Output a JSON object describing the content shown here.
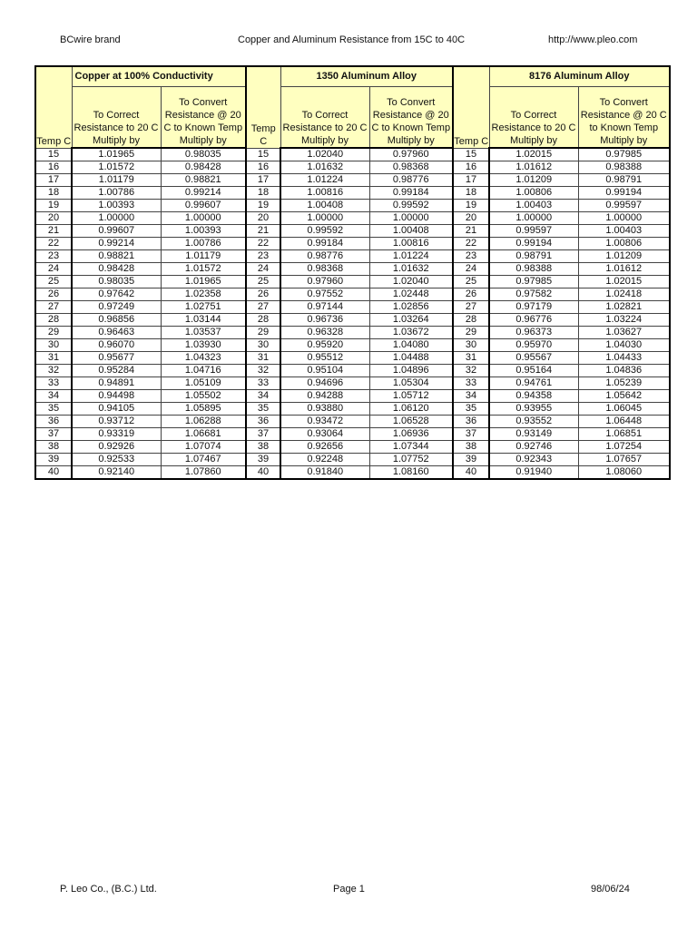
{
  "header": {
    "left": "BCwire brand",
    "center": "Copper and Aluminum Resistance from 15C to 40C",
    "right": "http://www.pleo.com"
  },
  "footer": {
    "left": "P. Leo Co., (B.C.) Ltd.",
    "center": "Page 1",
    "right": "98/06/24"
  },
  "table": {
    "groups": [
      "Copper at 100% Conductivity",
      "1350 Aluminum Alloy",
      "8176 Aluminum Alloy"
    ],
    "temp_label": "Temp C",
    "col_correct": "To Correct Resistance to 20 C Multiply by",
    "col_convert": "To Convert Resistance @ 20 C to Known Temp Multiply by",
    "header_color": "#ffffc0",
    "rows": [
      [
        "15",
        "1.01965",
        "0.98035",
        "15",
        "1.02040",
        "0.97960",
        "15",
        "1.02015",
        "0.97985"
      ],
      [
        "16",
        "1.01572",
        "0.98428",
        "16",
        "1.01632",
        "0.98368",
        "16",
        "1.01612",
        "0.98388"
      ],
      [
        "17",
        "1.01179",
        "0.98821",
        "17",
        "1.01224",
        "0.98776",
        "17",
        "1.01209",
        "0.98791"
      ],
      [
        "18",
        "1.00786",
        "0.99214",
        "18",
        "1.00816",
        "0.99184",
        "18",
        "1.00806",
        "0.99194"
      ],
      [
        "19",
        "1.00393",
        "0.99607",
        "19",
        "1.00408",
        "0.99592",
        "19",
        "1.00403",
        "0.99597"
      ],
      [
        "20",
        "1.00000",
        "1.00000",
        "20",
        "1.00000",
        "1.00000",
        "20",
        "1.00000",
        "1.00000"
      ],
      [
        "21",
        "0.99607",
        "1.00393",
        "21",
        "0.99592",
        "1.00408",
        "21",
        "0.99597",
        "1.00403"
      ],
      [
        "22",
        "0.99214",
        "1.00786",
        "22",
        "0.99184",
        "1.00816",
        "22",
        "0.99194",
        "1.00806"
      ],
      [
        "23",
        "0.98821",
        "1.01179",
        "23",
        "0.98776",
        "1.01224",
        "23",
        "0.98791",
        "1.01209"
      ],
      [
        "24",
        "0.98428",
        "1.01572",
        "24",
        "0.98368",
        "1.01632",
        "24",
        "0.98388",
        "1.01612"
      ],
      [
        "25",
        "0.98035",
        "1.01965",
        "25",
        "0.97960",
        "1.02040",
        "25",
        "0.97985",
        "1.02015"
      ],
      [
        "26",
        "0.97642",
        "1.02358",
        "26",
        "0.97552",
        "1.02448",
        "26",
        "0.97582",
        "1.02418"
      ],
      [
        "27",
        "0.97249",
        "1.02751",
        "27",
        "0.97144",
        "1.02856",
        "27",
        "0.97179",
        "1.02821"
      ],
      [
        "28",
        "0.96856",
        "1.03144",
        "28",
        "0.96736",
        "1.03264",
        "28",
        "0.96776",
        "1.03224"
      ],
      [
        "29",
        "0.96463",
        "1.03537",
        "29",
        "0.96328",
        "1.03672",
        "29",
        "0.96373",
        "1.03627"
      ],
      [
        "30",
        "0.96070",
        "1.03930",
        "30",
        "0.95920",
        "1.04080",
        "30",
        "0.95970",
        "1.04030"
      ],
      [
        "31",
        "0.95677",
        "1.04323",
        "31",
        "0.95512",
        "1.04488",
        "31",
        "0.95567",
        "1.04433"
      ],
      [
        "32",
        "0.95284",
        "1.04716",
        "32",
        "0.95104",
        "1.04896",
        "32",
        "0.95164",
        "1.04836"
      ],
      [
        "33",
        "0.94891",
        "1.05109",
        "33",
        "0.94696",
        "1.05304",
        "33",
        "0.94761",
        "1.05239"
      ],
      [
        "34",
        "0.94498",
        "1.05502",
        "34",
        "0.94288",
        "1.05712",
        "34",
        "0.94358",
        "1.05642"
      ],
      [
        "35",
        "0.94105",
        "1.05895",
        "35",
        "0.93880",
        "1.06120",
        "35",
        "0.93955",
        "1.06045"
      ],
      [
        "36",
        "0.93712",
        "1.06288",
        "36",
        "0.93472",
        "1.06528",
        "36",
        "0.93552",
        "1.06448"
      ],
      [
        "37",
        "0.93319",
        "1.06681",
        "37",
        "0.93064",
        "1.06936",
        "37",
        "0.93149",
        "1.06851"
      ],
      [
        "38",
        "0.92926",
        "1.07074",
        "38",
        "0.92656",
        "1.07344",
        "38",
        "0.92746",
        "1.07254"
      ],
      [
        "39",
        "0.92533",
        "1.07467",
        "39",
        "0.92248",
        "1.07752",
        "39",
        "0.92343",
        "1.07657"
      ],
      [
        "40",
        "0.92140",
        "1.07860",
        "40",
        "0.91840",
        "1.08160",
        "40",
        "0.91940",
        "1.08060"
      ]
    ]
  }
}
